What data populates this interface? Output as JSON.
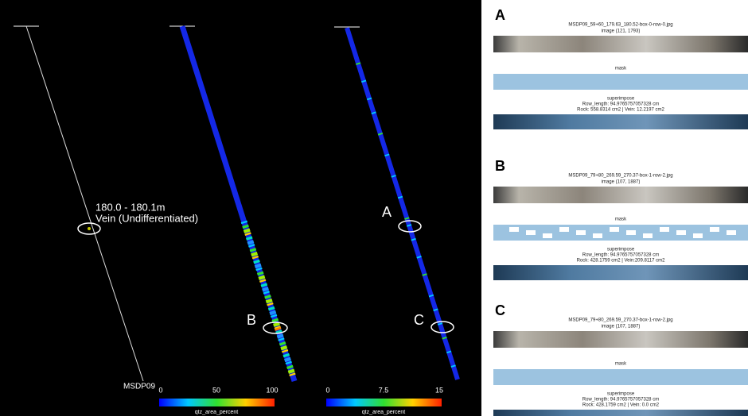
{
  "panels": [
    {
      "labels": [
        "180.0 - 180.1m",
        "Vein (Undifferentiated)"
      ],
      "hole": "MSDP09"
    },
    {
      "marker": "B",
      "colorbar": {
        "ticks": [
          "0",
          "50",
          "100"
        ],
        "label": "qtz_area_percent"
      }
    },
    {
      "markers": [
        "A",
        "C"
      ],
      "colorbar": {
        "ticks": [
          "0",
          "7.5",
          "15"
        ],
        "label": "qtz_area_percent"
      }
    }
  ],
  "samples": [
    {
      "letter": "A",
      "file": "MSDP09_59+60_179.63_180.52-box-0-row-0.jpg",
      "image": "image (121, 1793)",
      "mask": "mask",
      "superimpose": "superimpose",
      "row_length": "Row_length: 94.9765757057328 cm",
      "areas": "Rock: 558.8314 cm2 | Vein: 12.2197 cm2"
    },
    {
      "letter": "B",
      "file": "MSDP09_79+80_269.59_270.37-box-1-row-2.jpg",
      "image": "image (107, 1887)",
      "mask": "mask",
      "superimpose": "superimpose",
      "row_length": "Row_length: 94.9765757057328 cm",
      "areas": "Rock: 428.1759 cm2 | Vein:209.8117 cm2"
    },
    {
      "letter": "C",
      "file": "MSDP09_79+80_269.59_270.37-box-1-row-2.jpg",
      "image": "image (107, 1887)",
      "mask": "mask",
      "superimpose": "superimpose",
      "row_length": "Row_length: 94.9765757057328 cm",
      "areas": "Rock: 428.1759 cm2 | Vein: 0.0 cm2"
    }
  ]
}
